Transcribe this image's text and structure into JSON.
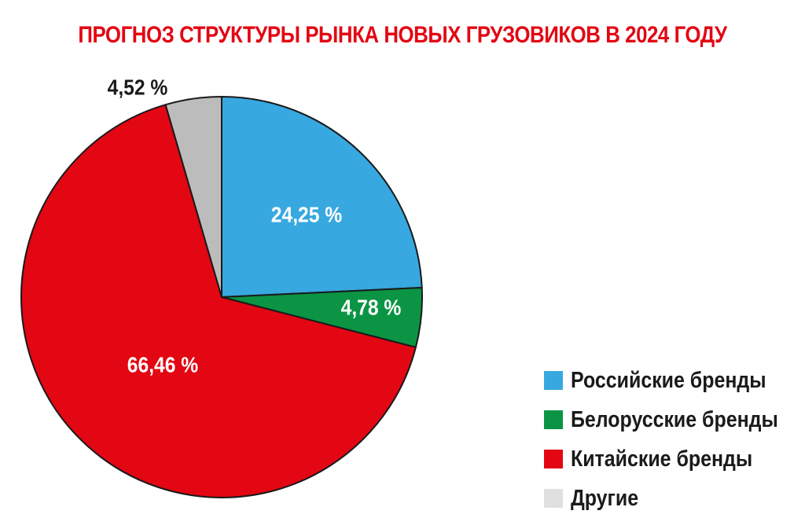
{
  "chart_data": {
    "type": "pie",
    "title": "ПРОГНОЗ СТРУКТУРЫ РЫНКА НОВЫХ ГРУЗОВИКОВ В 2024 ГОДУ",
    "slices": [
      {
        "name": "Российские бренды",
        "value": 24.25,
        "label": "24,25 %",
        "color": "#37a8e0",
        "label_color": "#ffffff"
      },
      {
        "name": "Белорусские бренды",
        "value": 4.78,
        "label": "4,78 %",
        "color": "#0b9444",
        "label_color": "#ffffff"
      },
      {
        "name": "Китайские бренды",
        "value": 66.46,
        "label": "66,46 %",
        "color": "#e30613",
        "label_color": "#ffffff"
      },
      {
        "name": "Другие",
        "value": 4.52,
        "label": "4,52 %",
        "color": "#bcbcbc",
        "label_color": "#1a1a1a"
      }
    ],
    "start_angle": "12 o'clock",
    "direction": "clockwise",
    "legend_position": "bottom-right"
  },
  "legend": {
    "items": [
      {
        "label": "Российские бренды",
        "color": "#37a8e0"
      },
      {
        "label": "Белорусские бренды",
        "color": "#0b9444"
      },
      {
        "label": "Китайские бренды",
        "color": "#e30613"
      },
      {
        "label": "Другие",
        "color": "#e0e0e0"
      }
    ]
  }
}
